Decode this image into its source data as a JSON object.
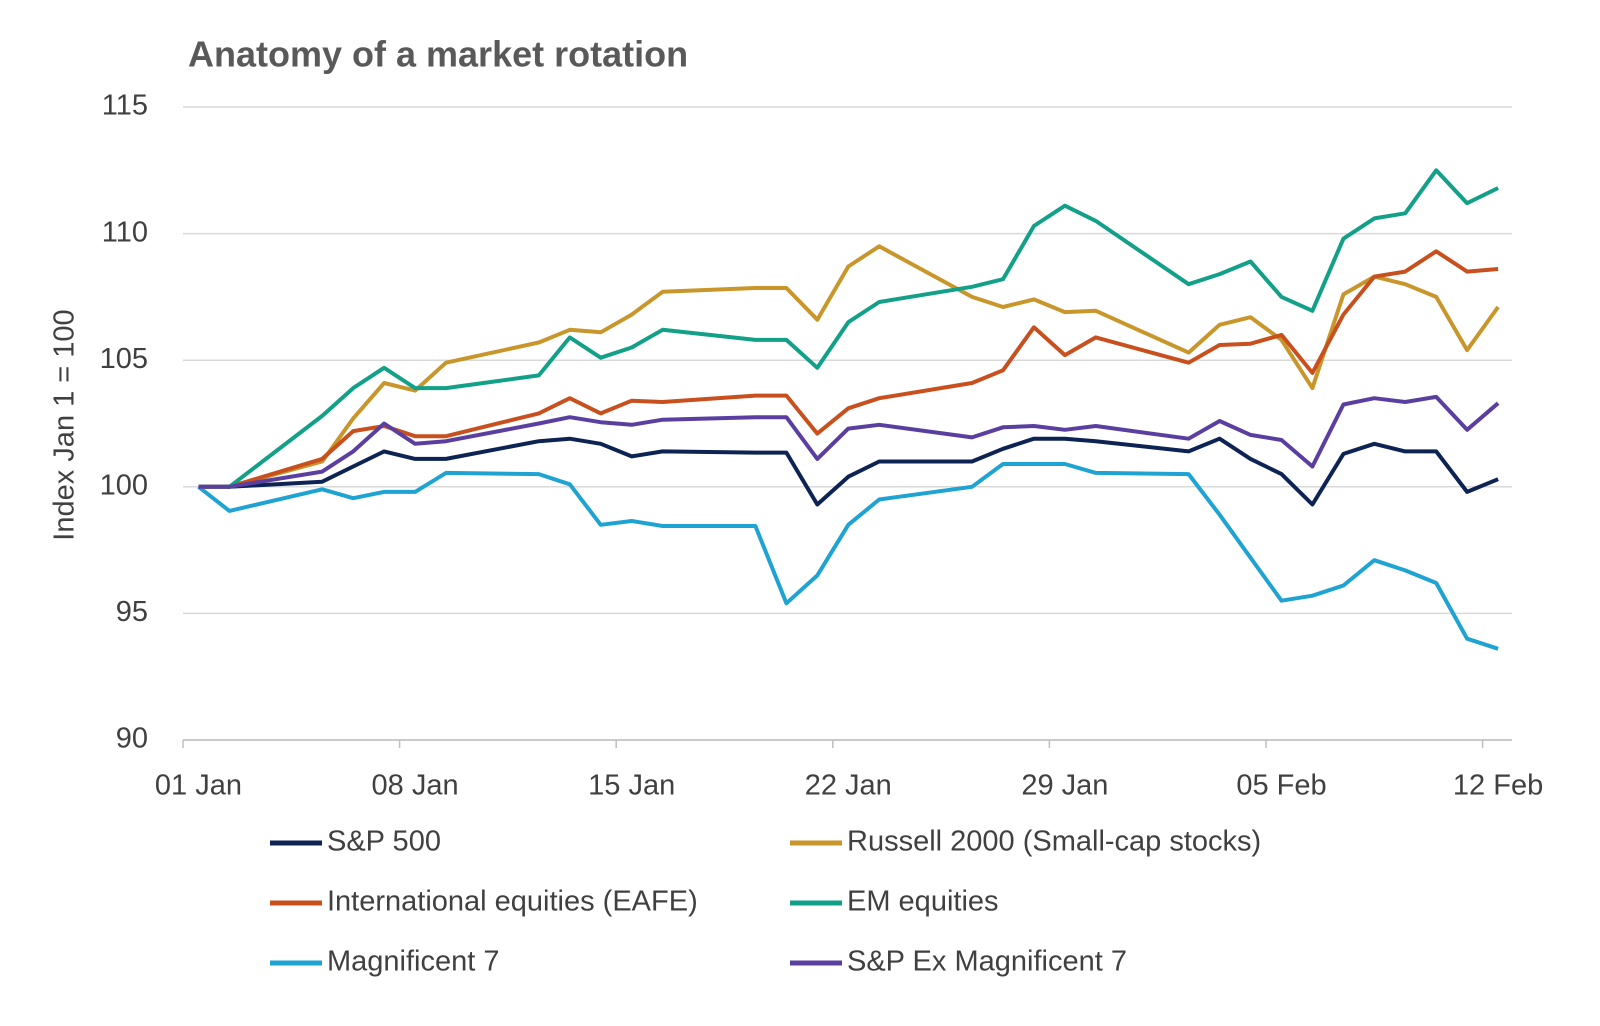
{
  "chart_data": {
    "type": "line",
    "title": "Anatomy of a market rotation",
    "y_label": "Index  Jan 1 = 100",
    "x": [
      "01 Jan",
      "02 Jan",
      "05 Jan",
      "06 Jan",
      "07 Jan",
      "08 Jan",
      "09 Jan",
      "12 Jan",
      "13 Jan",
      "14 Jan",
      "15 Jan",
      "16 Jan",
      "19 Jan",
      "20 Jan",
      "21 Jan",
      "22 Jan",
      "23 Jan",
      "26 Jan",
      "27 Jan",
      "28 Jan",
      "29 Jan",
      "30 Jan",
      "02 Feb",
      "03 Feb",
      "04 Feb",
      "05 Feb",
      "06 Feb",
      "07 Feb",
      "08 Feb",
      "09 Feb",
      "10 Feb",
      "11 Feb",
      "12 Feb"
    ],
    "xlim": [
      "01 Jan",
      "12 Feb"
    ],
    "xticks": [
      "01 Jan",
      "08 Jan",
      "15 Jan",
      "22 Jan",
      "29 Jan",
      "05 Feb",
      "12 Feb"
    ],
    "ylim": [
      90,
      115
    ],
    "yticks": [
      90,
      95,
      100,
      105,
      110,
      115
    ],
    "grid": true,
    "series": [
      {
        "name": "S&P 500",
        "color": "#0d2354",
        "values": [
          100,
          100,
          100.2,
          100.8,
          101.4,
          101.1,
          101.1,
          101.8,
          101.9,
          101.7,
          101.2,
          101.4,
          101.35,
          101.35,
          99.3,
          100.4,
          101.0,
          101.0,
          101.5,
          101.9,
          101.9,
          101.8,
          101.4,
          101.9,
          101.1,
          100.5,
          99.3,
          101.3,
          101.7,
          101.4,
          101.4,
          99.8,
          100.3
        ]
      },
      {
        "name": "Russell 2000 (Small-cap stocks)",
        "color": "#c9962b",
        "values": [
          100,
          100,
          101.0,
          102.7,
          104.1,
          103.8,
          104.9,
          105.7,
          106.2,
          106.1,
          106.8,
          107.7,
          107.85,
          107.85,
          106.6,
          108.7,
          109.5,
          107.5,
          107.1,
          107.4,
          106.9,
          106.95,
          105.3,
          106.4,
          106.7,
          105.8,
          103.9,
          107.6,
          108.3,
          108.0,
          107.5,
          105.4,
          107.1
        ]
      },
      {
        "name": "International equities (EAFE)",
        "color": "#c8501e",
        "values": [
          100,
          100,
          101.1,
          102.2,
          102.4,
          102.0,
          102.0,
          102.9,
          103.5,
          102.9,
          103.4,
          103.35,
          103.6,
          103.6,
          102.1,
          103.1,
          103.5,
          104.1,
          104.6,
          106.3,
          105.2,
          105.9,
          104.9,
          105.6,
          105.65,
          106.0,
          104.5,
          106.8,
          108.3,
          108.5,
          109.3,
          108.5,
          108.6
        ]
      },
      {
        "name": "EM equities",
        "color": "#12a088",
        "values": [
          100,
          100,
          102.8,
          103.9,
          104.7,
          103.9,
          103.9,
          104.4,
          105.9,
          105.1,
          105.5,
          106.2,
          105.8,
          105.8,
          104.7,
          106.5,
          107.3,
          107.9,
          108.2,
          110.3,
          111.1,
          110.5,
          108.0,
          108.4,
          108.9,
          107.5,
          106.95,
          109.8,
          110.6,
          110.8,
          112.5,
          111.2,
          111.8
        ]
      },
      {
        "name": "Magnificent 7",
        "color": "#1ea3d2",
        "values": [
          100,
          99.05,
          99.9,
          99.55,
          99.8,
          99.8,
          100.55,
          100.5,
          100.1,
          98.5,
          98.65,
          98.45,
          98.45,
          95.4,
          96.5,
          98.5,
          99.5,
          100.0,
          100.9,
          100.9,
          100.9,
          100.55,
          100.5,
          98.9,
          97.2,
          95.5,
          95.7,
          96.1,
          97.1,
          96.7,
          96.2,
          94.0,
          93.6
        ]
      },
      {
        "name": "S&P Ex Magnificent 7",
        "color": "#5b3fa0",
        "values": [
          100,
          100,
          100.6,
          101.4,
          102.5,
          101.7,
          101.8,
          102.5,
          102.75,
          102.55,
          102.45,
          102.65,
          102.75,
          102.75,
          101.1,
          102.3,
          102.45,
          101.95,
          102.35,
          102.4,
          102.25,
          102.4,
          101.9,
          102.6,
          102.05,
          101.85,
          100.8,
          103.25,
          103.5,
          103.35,
          103.55,
          102.25,
          103.3
        ]
      }
    ]
  }
}
